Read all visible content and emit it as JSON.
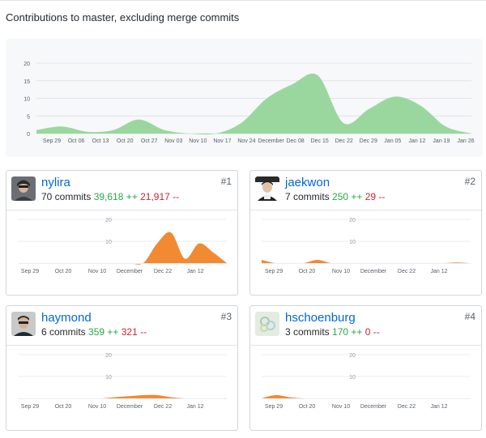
{
  "header": {
    "title": "Contributions to master, excluding merge commits"
  },
  "chart_data": [
    {
      "type": "area",
      "title": "",
      "x": [
        "Sep 29",
        "Oct 06",
        "Oct 13",
        "Oct 20",
        "Oct 27",
        "Nov 03",
        "Nov 10",
        "Nov 17",
        "Nov 24",
        "December",
        "Dec 08",
        "Dec 15",
        "Dec 22",
        "Dec 29",
        "Jan 05",
        "Jan 12",
        "Jan 19",
        "Jan 26"
      ],
      "series": [
        {
          "values": [
            1,
            2,
            0.5,
            1,
            4,
            1,
            0,
            0,
            3,
            10,
            14,
            16.5,
            3,
            7,
            10.5,
            8,
            2,
            0
          ]
        }
      ],
      "ylim": [
        0,
        20
      ],
      "yticks": [
        "0",
        "5",
        "10",
        "15",
        "20"
      ],
      "grid": true,
      "color": "#9ad79f"
    }
  ],
  "contributors": [
    {
      "rank": "#1",
      "username": "nylira",
      "commits": "70 commits",
      "additions": "39,618 ++",
      "deletions": "21,917 --",
      "chart": {
        "type": "area",
        "yticks": [
          "10",
          "20"
        ],
        "xticks": [
          "Sep 29",
          "Oct 20",
          "Nov 10",
          "December",
          "Dec 22",
          "Jan 12"
        ],
        "values": [
          0,
          0,
          0,
          0,
          0,
          0,
          0,
          0,
          0,
          0,
          9,
          14,
          2,
          9,
          5,
          0
        ],
        "color": "#f28933"
      }
    },
    {
      "rank": "#2",
      "username": "jaekwon",
      "commits": "7 commits",
      "additions": "250 ++",
      "deletions": "29 --",
      "chart": {
        "type": "area",
        "yticks": [
          "10",
          "20"
        ],
        "xticks": [
          "Sep 29",
          "Oct 20",
          "Nov 10",
          "December",
          "Dec 22",
          "Jan 12"
        ],
        "values": [
          1.5,
          0,
          0,
          0,
          1.5,
          0,
          0,
          0,
          0,
          0,
          0,
          0,
          0,
          0,
          0.3,
          0
        ],
        "color": "#f28933"
      }
    },
    {
      "rank": "#3",
      "username": "haymond",
      "commits": "6 commits",
      "additions": "359 ++",
      "deletions": "321 --",
      "chart": {
        "type": "area",
        "yticks": [
          "10",
          "20"
        ],
        "xticks": [
          "Sep 29",
          "Oct 20",
          "Nov 10",
          "December",
          "Dec 22",
          "Jan 12"
        ],
        "values": [
          0,
          0,
          0,
          0,
          0,
          0,
          0,
          0.5,
          1,
          1.5,
          1.5,
          0.5,
          0,
          0,
          0,
          0
        ],
        "color": "#f28933"
      }
    },
    {
      "rank": "#4",
      "username": "hschoenburg",
      "commits": "3 commits",
      "additions": "170 ++",
      "deletions": "0 --",
      "chart": {
        "type": "area",
        "yticks": [
          "10",
          "20"
        ],
        "xticks": [
          "Sep 29",
          "Oct 20",
          "Nov 10",
          "December",
          "Dec 22",
          "Jan 12"
        ],
        "values": [
          0,
          1.5,
          0.5,
          0,
          0,
          0,
          0,
          0,
          0,
          0,
          0,
          0,
          0,
          0,
          0,
          0
        ],
        "color": "#f28933"
      }
    }
  ]
}
